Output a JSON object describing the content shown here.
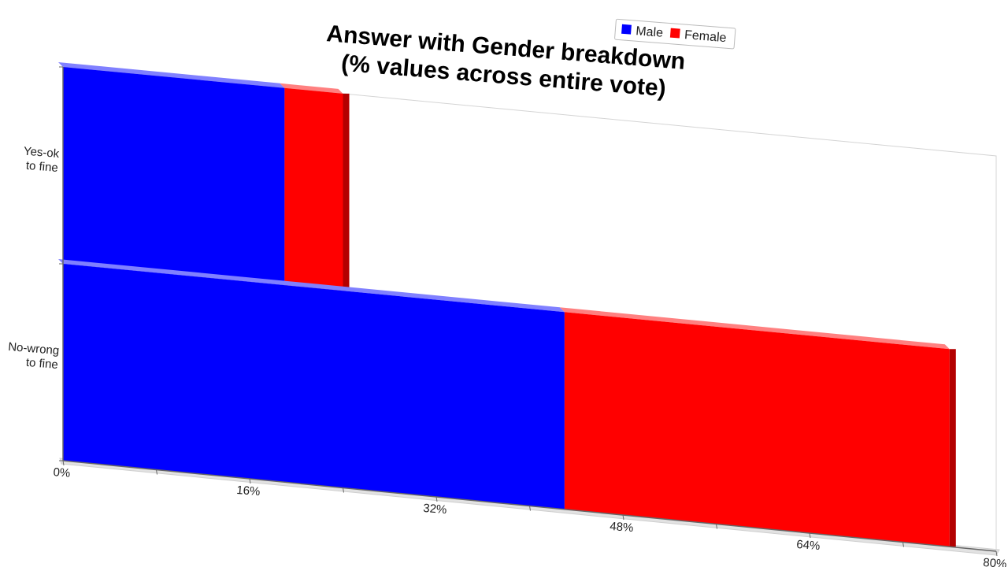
{
  "chart_data": {
    "type": "bar",
    "orientation": "horizontal",
    "stacked": true,
    "style": "3d-perspective",
    "title_lines": [
      "Answer with Gender breakdown",
      "(% values across entire vote)"
    ],
    "categories": [
      "Yes-ok\nto fine",
      "No-wrong\nto fine"
    ],
    "series": [
      {
        "name": "Male",
        "color": "#0000ff",
        "values": [
          19,
          43
        ]
      },
      {
        "name": "Female",
        "color": "#ff0000",
        "values": [
          5,
          33
        ]
      }
    ],
    "xlim": [
      0,
      80
    ],
    "x_ticks": [
      "0%",
      "16%",
      "32%",
      "48%",
      "64%",
      "80%"
    ],
    "x_tick_values": [
      0,
      16,
      32,
      48,
      64,
      80
    ],
    "grid": false,
    "legend_position": "top-right"
  }
}
